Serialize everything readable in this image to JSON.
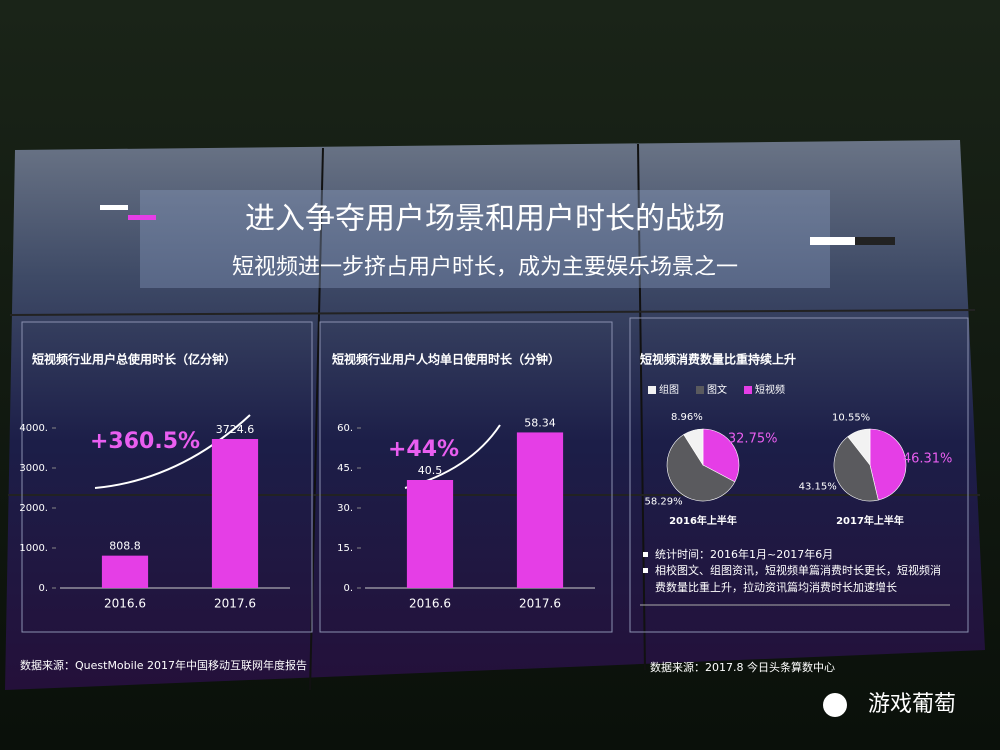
{
  "title": "进入争夺用户场景和用户时长的战场",
  "subtitle": "短视频进一步挤占用户时长，成为主要娱乐场景之一",
  "notes": [
    "统计时间：2016年1月~2017年6月",
    "相校图文、组图资讯，短视频单篇消费时长更长，短视频消",
    "费数量比重上升，拉动资讯篇均消费时长加速增长"
  ],
  "sources": [
    "数据来源：QuestMobile 2017年中国移动互联网年度报告",
    "数据来源：2017.8 今日头条算数中心"
  ],
  "watermark": "游戏葡萄",
  "chart_data": [
    {
      "type": "bar",
      "title": "短视频行业用户总使用时长（亿分钟）",
      "annotation": "+360.5%",
      "categories": [
        "2016.6",
        "2017.6"
      ],
      "values": [
        808.8,
        3724.6
      ],
      "color": "#e53ee6",
      "ylim": [
        0,
        4000
      ],
      "yticks": [
        {
          "value": 0,
          "label": "0."
        },
        {
          "value": 1000,
          "label": "1000."
        },
        {
          "value": 2000,
          "label": "2000."
        },
        {
          "value": 3000,
          "label": "3000."
        },
        {
          "value": 4000,
          "label": "4000."
        }
      ],
      "grid": false
    },
    {
      "type": "bar",
      "title": "短视频行业用户人均单日使用时长（分钟）",
      "annotation": "+44%",
      "categories": [
        "2016.6",
        "2017.6"
      ],
      "values": [
        40.5,
        58.34
      ],
      "color": "#e53ee6",
      "ylim": [
        0,
        60
      ],
      "yticks": [
        {
          "value": 0,
          "label": "0."
        },
        {
          "value": 15,
          "label": "15."
        },
        {
          "value": 30,
          "label": "30."
        },
        {
          "value": 45,
          "label": "45."
        },
        {
          "value": 60,
          "label": "60."
        }
      ],
      "grid": false
    },
    {
      "type": "pie",
      "title": "短视频消费数量比重持续上升",
      "categories": [
        "2016年上半年",
        "2017年上半年"
      ],
      "series": [
        {
          "name": "组图",
          "color": "#f2f2f2",
          "values": [
            8.96,
            10.55
          ],
          "value_labels": [
            "8.96%",
            "10.55%"
          ]
        },
        {
          "name": "图文",
          "color": "#5a5a5e",
          "values": [
            58.29,
            43.15
          ],
          "value_labels": [
            "58.29%",
            "43.15%"
          ]
        },
        {
          "name": "短视频",
          "color": "#e53ee6",
          "values": [
            32.75,
            46.31
          ],
          "value_labels": [
            "32.75%",
            "46.31%"
          ]
        }
      ]
    }
  ]
}
